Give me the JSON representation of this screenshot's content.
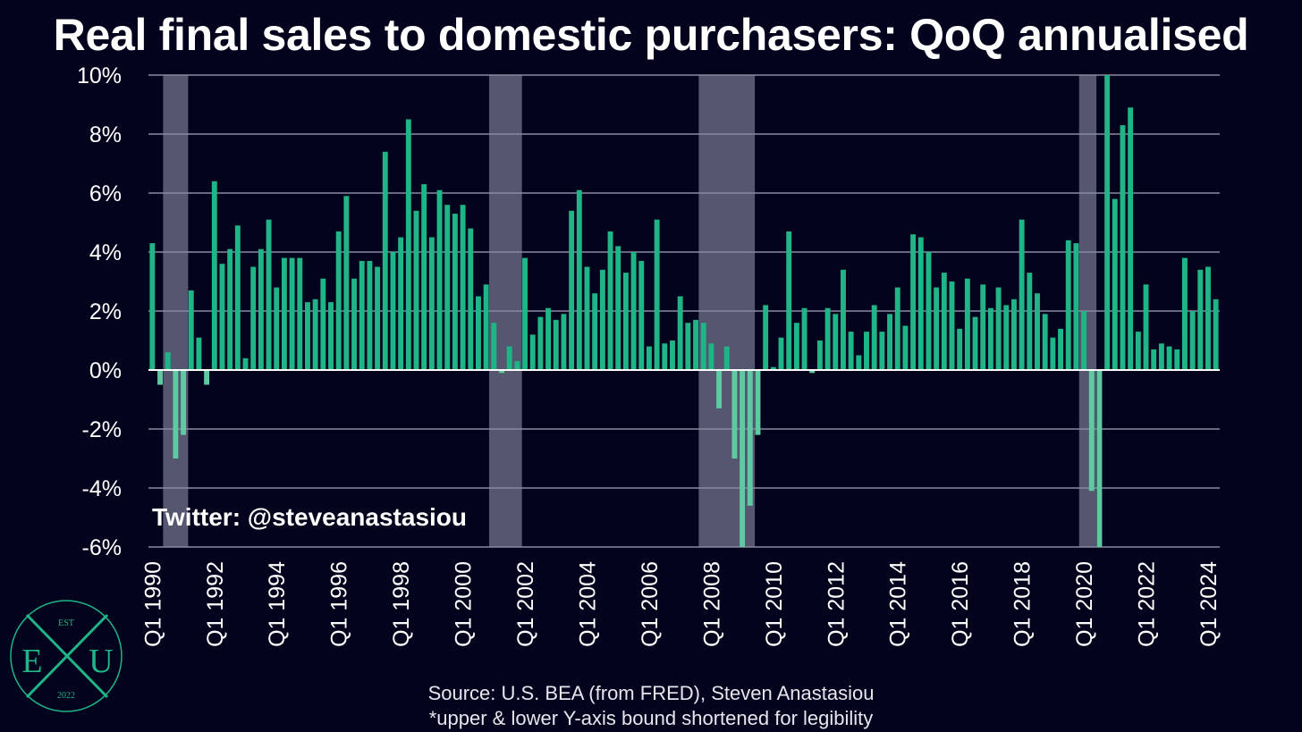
{
  "title": "Real final sales to domestic purchasers: QoQ annualised",
  "watermark": "Twitter: @steveanastasiou",
  "source_line1": "Source: U.S. BEA (from FRED), Steven Anastasiou",
  "source_line2": "*upper & lower Y-axis bound shortened for legibility",
  "logo": {
    "top": "EST",
    "left": "E",
    "right": "U",
    "bottom": "2022",
    "color": "#1fb586"
  },
  "colors": {
    "background": "#03031e",
    "bar": "#1fb586",
    "bar_negative": "#5fc9a2",
    "recession": "#55566f",
    "grid": "#8a8a9e",
    "zero_line": "#ffffff"
  },
  "chart_data": {
    "type": "bar",
    "start": "Q1 1990",
    "frequency": "quarterly",
    "ylim": [
      -6,
      10
    ],
    "yticks": [
      "10%",
      "8%",
      "6%",
      "4%",
      "2%",
      "0%",
      "-2%",
      "-4%",
      "-6%"
    ],
    "ytick_values": [
      10,
      8,
      6,
      4,
      2,
      0,
      -2,
      -4,
      -6
    ],
    "xticks": [
      "Q1 1990",
      "Q1 1992",
      "Q1 1994",
      "Q1 1996",
      "Q1 1998",
      "Q1 2000",
      "Q1 2002",
      "Q1 2004",
      "Q1 2006",
      "Q1 2008",
      "Q1 2010",
      "Q1 2012",
      "Q1 2014",
      "Q1 2016",
      "Q1 2018",
      "Q1 2020",
      "Q1 2022",
      "Q1 2024"
    ],
    "recessions": [
      [
        "Q3 1990",
        "Q1 1991"
      ],
      [
        "Q1 2001",
        "Q4 2001"
      ],
      [
        "Q4 2007",
        "Q2 2009"
      ],
      [
        "Q1 2020",
        "Q2 2020"
      ]
    ],
    "values": [
      4.3,
      -0.5,
      0.6,
      -3.0,
      -2.2,
      2.7,
      1.1,
      -0.5,
      6.4,
      3.6,
      4.1,
      4.9,
      0.4,
      3.5,
      4.1,
      5.1,
      2.8,
      3.8,
      3.8,
      3.8,
      2.3,
      2.4,
      3.1,
      2.3,
      4.7,
      5.9,
      3.1,
      3.7,
      3.7,
      3.5,
      7.4,
      4.0,
      4.5,
      8.5,
      5.4,
      6.3,
      4.5,
      6.1,
      5.6,
      5.3,
      5.6,
      4.8,
      2.5,
      2.9,
      1.6,
      -0.1,
      0.8,
      0.3,
      3.8,
      1.2,
      1.8,
      2.1,
      1.7,
      1.9,
      5.4,
      6.1,
      3.5,
      2.6,
      3.4,
      4.7,
      4.2,
      3.3,
      4.0,
      3.7,
      0.8,
      5.1,
      0.9,
      1.0,
      2.5,
      1.6,
      1.7,
      1.6,
      0.9,
      -1.3,
      0.8,
      -3.0,
      -6.0,
      -4.6,
      -2.2,
      2.2,
      0.1,
      1.1,
      4.7,
      1.6,
      2.1,
      -0.1,
      1.0,
      2.1,
      1.9,
      3.4,
      1.3,
      0.5,
      1.3,
      2.2,
      1.3,
      1.9,
      2.8,
      1.5,
      4.6,
      4.5,
      4.0,
      2.8,
      3.3,
      3.0,
      1.4,
      3.1,
      1.8,
      2.9,
      2.1,
      2.8,
      2.2,
      2.4,
      5.1,
      3.3,
      2.6,
      1.9,
      1.1,
      1.4,
      4.4,
      4.3,
      2.0,
      -4.1,
      -6.0,
      10.0,
      5.8,
      8.3,
      8.9,
      1.3,
      2.9,
      0.7,
      0.9,
      0.8,
      0.7,
      3.8,
      2.0,
      3.4,
      3.5,
      2.4
    ]
  }
}
